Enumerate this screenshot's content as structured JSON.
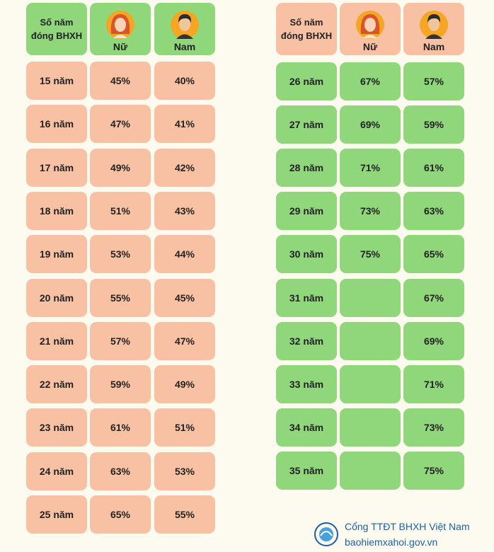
{
  "left_table": {
    "header": [
      [
        "Số năm",
        "đóng BHXH"
      ],
      "Nữ",
      "Nam"
    ],
    "rows": [
      [
        "15 năm",
        "45%",
        "40%"
      ],
      [
        "16 năm",
        "47%",
        "41%"
      ],
      [
        "17 năm",
        "49%",
        "42%"
      ],
      [
        "18 năm",
        "51%",
        "43%"
      ],
      [
        "19 năm",
        "53%",
        "44%"
      ],
      [
        "20 năm",
        "55%",
        "45%"
      ],
      [
        "21 năm",
        "57%",
        "47%"
      ],
      [
        "22 năm",
        "59%",
        "49%"
      ],
      [
        "23 năm",
        "61%",
        "51%"
      ],
      [
        "24 năm",
        "63%",
        "53%"
      ],
      [
        "25 năm",
        "65%",
        "55%"
      ]
    ]
  },
  "right_table": {
    "header": [
      [
        "Số năm",
        "đóng BHXH"
      ],
      "Nữ",
      "Nam"
    ],
    "rows": [
      [
        "26 năm",
        "67%",
        "57%"
      ],
      [
        "27 năm",
        "69%",
        "59%"
      ],
      [
        "28 năm",
        "71%",
        "61%"
      ],
      [
        "29 năm",
        "73%",
        "63%"
      ],
      [
        "30 năm",
        "75%",
        "65%"
      ],
      [
        "31 năm",
        null,
        "67%"
      ],
      [
        "32 năm",
        null,
        "69%"
      ],
      [
        "33 năm",
        null,
        "71%"
      ],
      [
        "34 năm",
        null,
        "73%"
      ],
      [
        "35 năm",
        null,
        "75%"
      ]
    ]
  },
  "footer": {
    "source": "Cổng TTĐT BHXH Việt Nam",
    "website": "baohiemxahoi.gov.vn"
  }
}
